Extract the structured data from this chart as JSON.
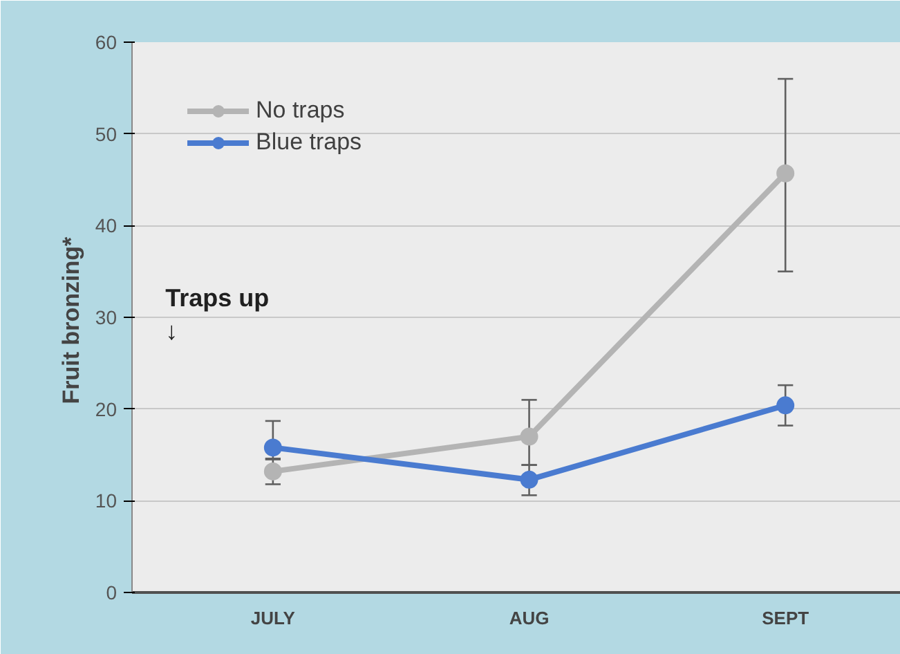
{
  "chart_data": {
    "type": "line",
    "ylabel": "Fruit  bronzing*",
    "categories": [
      "JULY",
      "AUG",
      "SEPT"
    ],
    "series": [
      {
        "name": "No traps",
        "color": "#b4b4b4",
        "values": [
          13.2,
          17.0,
          45.7
        ],
        "errors": [
          [
            11.8,
            14.6
          ],
          [
            13.9,
            21.0
          ],
          [
            35.0,
            56.0
          ]
        ]
      },
      {
        "name": "Blue traps",
        "color": "#4a7bd0",
        "values": [
          15.8,
          12.3,
          20.4
        ],
        "errors": [
          [
            14.5,
            18.7
          ],
          [
            10.6,
            13.9
          ],
          [
            18.2,
            22.6
          ]
        ]
      }
    ],
    "ylim": [
      0,
      60
    ],
    "yticks": [
      0,
      10,
      20,
      30,
      40,
      50,
      60
    ],
    "grid": "y",
    "legend": "top left",
    "marker": "circle",
    "line_style": "solid",
    "annotations": [
      "Traps up\n↓"
    ]
  }
}
